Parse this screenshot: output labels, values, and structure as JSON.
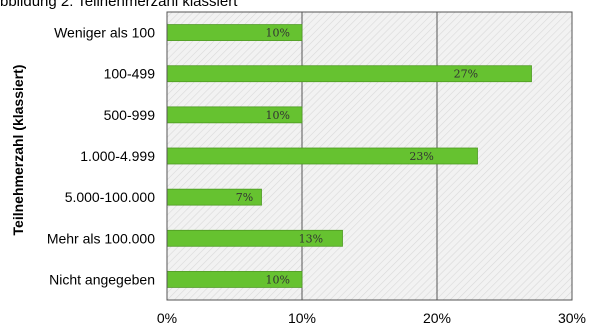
{
  "chart_data": {
    "type": "bar",
    "orientation": "horizontal",
    "title": "bbildung 2: Teilnehmerzahl klassiert",
    "ylabel": "Teilnehmerzahl (klassiert)",
    "xlabel": "",
    "categories": [
      "Weniger als 100",
      "100-499",
      "500-999",
      "1.000-4.999",
      "5.000-100.000",
      "Mehr als 100.000",
      "Nicht angegeben"
    ],
    "values": [
      10,
      27,
      10,
      23,
      7,
      13,
      10
    ],
    "value_labels": [
      "10%",
      "27%",
      "10%",
      "23%",
      "7%",
      "13%",
      "10%"
    ],
    "xlim": [
      0,
      30
    ],
    "xticks": [
      "0%",
      "10%",
      "20%",
      "30%"
    ],
    "grid": true,
    "bar_color": "#66c230",
    "bar_border_color": "#4e9a22",
    "plot_background": "hatched light gray",
    "grid_color": "#555555"
  }
}
